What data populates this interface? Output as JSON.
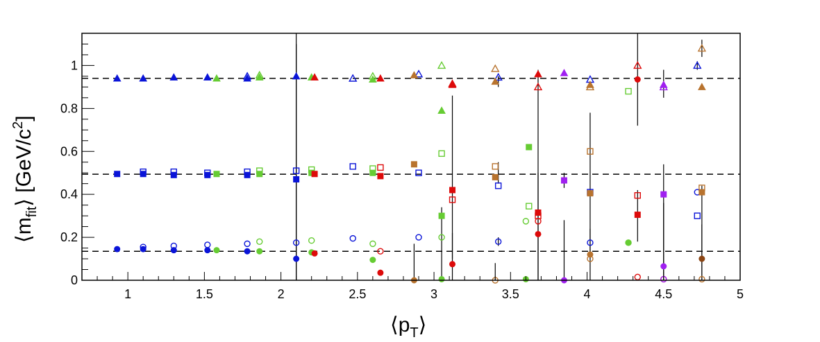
{
  "chart_data": {
    "type": "scatter",
    "title": "",
    "xlabel": "⟨p_T⟩",
    "ylabel": "⟨m_fit⟩ [GeV/c^2]",
    "xlim": [
      0.7,
      5.0
    ],
    "ylim": [
      0,
      1.15
    ],
    "x_ticks": [
      "1",
      "1.5",
      "2",
      "2.5",
      "3",
      "3.5",
      "4",
      "4.5",
      "5"
    ],
    "y_ticks": [
      "0",
      "0.2",
      "0.4",
      "0.6",
      "0.8",
      "1"
    ],
    "grid": false,
    "reference_lines": [
      0.135,
      0.494,
      0.94
    ],
    "colors": {
      "blue": "#0a14d8",
      "green": "#66cc33",
      "red": "#dd0a0a",
      "darkred": "#a00000",
      "orange": "#b8732e",
      "brown": "#8b4513",
      "purple": "#a020f0",
      "black": "#000000"
    },
    "series": [
      {
        "color": "blue",
        "marker": "filled-circle",
        "points": [
          [
            0.93,
            0.145
          ],
          [
            1.1,
            0.145
          ],
          [
            1.3,
            0.14
          ],
          [
            1.52,
            0.14
          ],
          [
            1.78,
            0.135
          ],
          [
            2.1,
            0.1
          ]
        ]
      },
      {
        "color": "blue",
        "marker": "open-circle",
        "points": [
          [
            1.1,
            0.155
          ],
          [
            1.3,
            0.16
          ],
          [
            1.52,
            0.165
          ],
          [
            1.78,
            0.17
          ],
          [
            2.1,
            0.175
          ],
          [
            2.47,
            0.195
          ],
          [
            2.9,
            0.2
          ],
          [
            3.42,
            0.18
          ],
          [
            4.02,
            0.175
          ],
          [
            4.72,
            0.41
          ]
        ]
      },
      {
        "color": "blue",
        "marker": "filled-square",
        "points": [
          [
            0.93,
            0.495
          ],
          [
            1.1,
            0.495
          ],
          [
            1.3,
            0.49
          ],
          [
            1.52,
            0.49
          ],
          [
            1.78,
            0.49
          ],
          [
            2.1,
            0.47
          ]
        ]
      },
      {
        "color": "blue",
        "marker": "open-square",
        "points": [
          [
            1.1,
            0.505
          ],
          [
            1.3,
            0.505
          ],
          [
            1.52,
            0.5
          ],
          [
            1.78,
            0.505
          ],
          [
            2.1,
            0.51
          ],
          [
            2.47,
            0.53
          ],
          [
            2.9,
            0.5
          ],
          [
            3.42,
            0.44
          ],
          [
            4.02,
            0.41
          ],
          [
            4.72,
            0.3
          ]
        ]
      },
      {
        "color": "blue",
        "marker": "filled-triangle",
        "points": [
          [
            0.93,
            0.94
          ],
          [
            1.1,
            0.94
          ],
          [
            1.3,
            0.945
          ],
          [
            1.52,
            0.945
          ],
          [
            1.78,
            0.94
          ],
          [
            2.1,
            0.95
          ]
        ]
      },
      {
        "color": "blue",
        "marker": "open-triangle",
        "points": [
          [
            1.78,
            0.95
          ],
          [
            2.47,
            0.94
          ],
          [
            2.9,
            0.96
          ],
          [
            3.42,
            0.945
          ],
          [
            4.02,
            0.935
          ],
          [
            4.72,
            1.0
          ]
        ]
      },
      {
        "color": "green",
        "marker": "filled-circle",
        "points": [
          [
            1.58,
            0.14
          ],
          [
            1.86,
            0.135
          ],
          [
            2.2,
            0.13
          ],
          [
            2.6,
            0.095
          ],
          [
            3.05,
            0.005
          ],
          [
            3.6,
            0.005
          ],
          [
            4.27,
            0.175
          ]
        ]
      },
      {
        "color": "green",
        "marker": "open-circle",
        "points": [
          [
            1.86,
            0.18
          ],
          [
            2.2,
            0.185
          ],
          [
            2.6,
            0.17
          ],
          [
            3.05,
            0.2
          ],
          [
            3.6,
            0.275
          ],
          [
            4.27,
            0.175
          ]
        ]
      },
      {
        "color": "green",
        "marker": "filled-square",
        "points": [
          [
            1.58,
            0.495
          ],
          [
            1.86,
            0.495
          ],
          [
            2.2,
            0.5
          ],
          [
            2.6,
            0.5
          ],
          [
            3.05,
            0.3
          ],
          [
            3.62,
            0.62
          ]
        ]
      },
      {
        "color": "green",
        "marker": "open-square",
        "points": [
          [
            1.86,
            0.51
          ],
          [
            2.2,
            0.515
          ],
          [
            2.6,
            0.52
          ],
          [
            3.05,
            0.59
          ],
          [
            3.62,
            0.345
          ],
          [
            4.27,
            0.88
          ]
        ]
      },
      {
        "color": "green",
        "marker": "filled-triangle",
        "points": [
          [
            1.58,
            0.94
          ],
          [
            1.86,
            0.945
          ],
          [
            2.2,
            0.945
          ],
          [
            2.6,
            0.935
          ],
          [
            3.05,
            0.79
          ]
        ]
      },
      {
        "color": "green",
        "marker": "open-triangle",
        "points": [
          [
            1.86,
            0.955
          ],
          [
            2.6,
            0.95
          ],
          [
            3.05,
            1.0
          ]
        ]
      },
      {
        "color": "red",
        "marker": "filled-circle",
        "points": [
          [
            2.22,
            0.125
          ],
          [
            2.65,
            0.035
          ],
          [
            3.12,
            0.075
          ],
          [
            3.68,
            0.215
          ],
          [
            4.33,
            0.935
          ]
        ]
      },
      {
        "color": "red",
        "marker": "open-circle",
        "points": [
          [
            2.65,
            0.135
          ],
          [
            3.68,
            0.275
          ],
          [
            4.33,
            0.015
          ],
          [
            4.5,
            0.005
          ]
        ]
      },
      {
        "color": "red",
        "marker": "filled-square",
        "points": [
          [
            2.22,
            0.495
          ],
          [
            2.65,
            0.485
          ],
          [
            3.12,
            0.42
          ],
          [
            3.68,
            0.315
          ],
          [
            4.33,
            0.305
          ]
        ]
      },
      {
        "color": "red",
        "marker": "open-square",
        "points": [
          [
            2.65,
            0.525
          ],
          [
            3.12,
            0.375
          ],
          [
            3.68,
            0.3
          ],
          [
            4.33,
            0.395
          ]
        ]
      },
      {
        "color": "red",
        "marker": "filled-triangle",
        "points": [
          [
            2.22,
            0.945
          ],
          [
            2.65,
            0.94
          ],
          [
            3.12,
            0.91
          ],
          [
            3.68,
            0.96
          ]
        ]
      },
      {
        "color": "red",
        "marker": "open-triangle",
        "points": [
          [
            3.12,
            0.915
          ],
          [
            3.68,
            0.9
          ],
          [
            4.33,
            1.0
          ]
        ]
      },
      {
        "color": "orange",
        "marker": "filled-circle",
        "points": [
          [
            2.87,
            0.0
          ],
          [
            4.02,
            0.12
          ]
        ]
      },
      {
        "color": "orange",
        "marker": "open-circle",
        "points": [
          [
            3.4,
            0.0
          ],
          [
            4.02,
            0.1
          ],
          [
            4.75,
            0.005
          ]
        ]
      },
      {
        "color": "orange",
        "marker": "filled-square",
        "points": [
          [
            2.87,
            0.54
          ],
          [
            3.4,
            0.48
          ],
          [
            4.02,
            0.405
          ],
          [
            4.75,
            0.41
          ]
        ]
      },
      {
        "color": "orange",
        "marker": "open-square",
        "points": [
          [
            3.4,
            0.53
          ],
          [
            4.02,
            0.6
          ],
          [
            4.75,
            0.43
          ]
        ]
      },
      {
        "color": "orange",
        "marker": "filled-triangle",
        "points": [
          [
            2.87,
            0.955
          ],
          [
            3.4,
            0.925
          ],
          [
            4.02,
            0.91
          ],
          [
            4.75,
            0.9
          ]
        ]
      },
      {
        "color": "orange",
        "marker": "open-triangle",
        "points": [
          [
            3.4,
            0.985
          ],
          [
            4.02,
            0.9
          ],
          [
            4.75,
            1.08
          ]
        ]
      },
      {
        "color": "purple",
        "marker": "filled-circle",
        "points": [
          [
            3.85,
            0.0
          ],
          [
            4.5,
            0.065
          ]
        ]
      },
      {
        "color": "purple",
        "marker": "open-circle",
        "points": [
          [
            4.5,
            0.005
          ]
        ]
      },
      {
        "color": "purple",
        "marker": "filled-square",
        "points": [
          [
            3.85,
            0.465
          ],
          [
            4.5,
            0.4
          ]
        ]
      },
      {
        "color": "purple",
        "marker": "filled-triangle",
        "points": [
          [
            3.85,
            0.965
          ],
          [
            4.5,
            0.91
          ]
        ]
      },
      {
        "color": "purple",
        "marker": "open-triangle",
        "points": [
          [
            4.5,
            0.9
          ]
        ]
      },
      {
        "color": "brown",
        "marker": "filled-circle",
        "points": [
          [
            4.75,
            0.1
          ]
        ]
      }
    ],
    "error_bars": [
      {
        "x": 2.1,
        "y": 0.1,
        "low": 0.0,
        "high": 1.15
      },
      {
        "x": 2.1,
        "y": 0.47,
        "low": 0.0,
        "high": 1.1
      },
      {
        "x": 2.87,
        "y": 0.0,
        "low": 0.0,
        "high": 0.17
      },
      {
        "x": 3.05,
        "y": 0.2,
        "low": 0.0,
        "high": 0.34
      },
      {
        "x": 3.12,
        "y": 0.42,
        "low": 0.1,
        "high": 0.86
      },
      {
        "x": 3.12,
        "y": 0.075,
        "low": 0.0,
        "high": 0.22
      },
      {
        "x": 3.4,
        "y": 0.0,
        "low": 0.0,
        "high": 0.08
      },
      {
        "x": 3.42,
        "y": 0.18,
        "low": 0.16,
        "high": 0.2
      },
      {
        "x": 3.42,
        "y": 0.5,
        "low": 0.45,
        "high": 0.55
      },
      {
        "x": 3.42,
        "y": 0.93,
        "low": 0.9,
        "high": 0.95
      },
      {
        "x": 3.68,
        "y": 0.3,
        "low": 0.0,
        "high": 0.98
      },
      {
        "x": 3.68,
        "y": 0.215,
        "low": 0.0,
        "high": 0.5
      },
      {
        "x": 3.85,
        "y": 0.465,
        "low": 0.43,
        "high": 0.5
      },
      {
        "x": 3.85,
        "y": 0.0,
        "low": 0.0,
        "high": 0.28
      },
      {
        "x": 4.02,
        "y": 0.6,
        "low": 0.1,
        "high": 0.78
      },
      {
        "x": 4.02,
        "y": 0.12,
        "low": 0.0,
        "high": 0.24
      },
      {
        "x": 4.33,
        "y": 0.935,
        "low": 0.72,
        "high": 1.15
      },
      {
        "x": 4.33,
        "y": 0.3,
        "low": 0.18,
        "high": 0.42
      },
      {
        "x": 4.5,
        "y": 0.91,
        "low": 0.85,
        "high": 0.98
      },
      {
        "x": 4.5,
        "y": 0.4,
        "low": 0.0,
        "high": 0.54
      },
      {
        "x": 4.5,
        "y": 0.065,
        "low": 0.0,
        "high": 0.36
      },
      {
        "x": 4.75,
        "y": 0.41,
        "low": 0.0,
        "high": 0.44
      },
      {
        "x": 4.75,
        "y": 0.1,
        "low": 0.0,
        "high": 0.26
      },
      {
        "x": 4.75,
        "y": 1.08,
        "low": 1.04,
        "high": 1.12
      },
      {
        "x": 4.72,
        "y": 1.0,
        "low": 0.98,
        "high": 1.02
      }
    ]
  }
}
